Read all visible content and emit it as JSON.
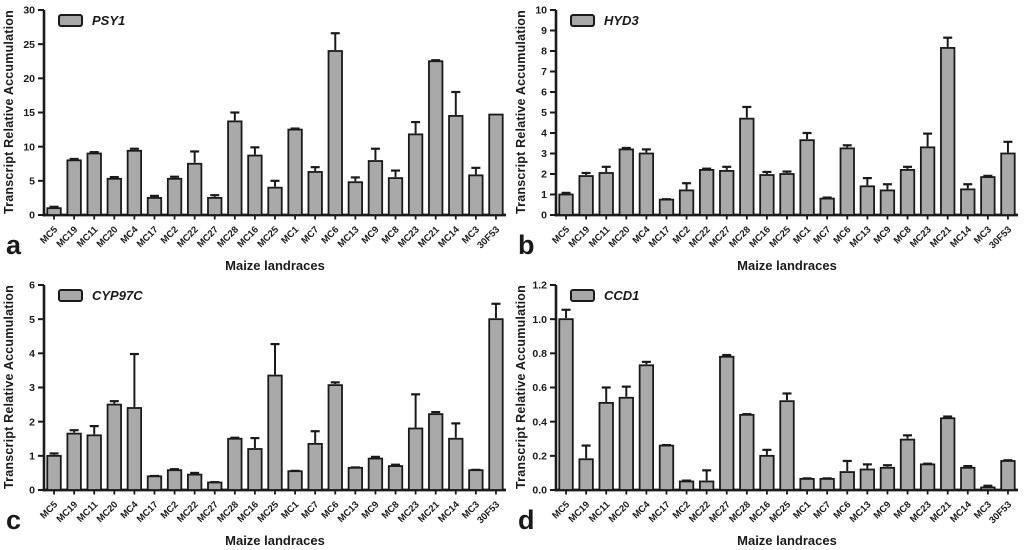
{
  "style": {
    "bar_fill": "#a9a9a9",
    "ink": "#1a1a1a",
    "background": "#ffffff"
  },
  "chart_data": [
    {
      "type": "bar",
      "panel_letter": "a",
      "legend": "PSY1",
      "legend_position": "top-left",
      "xlabel": "Maize landraces",
      "ylabel": "Transcript Relative Accumulation",
      "ylim": [
        0,
        30
      ],
      "ytick_labels": [
        "0",
        "5",
        "10",
        "15",
        "20",
        "25",
        "30"
      ],
      "grid": false,
      "categories": [
        "MC5",
        "MC19",
        "MC11",
        "MC20",
        "MC4",
        "MC17",
        "MC2",
        "MC22",
        "MC27",
        "MC28",
        "MC16",
        "MC25",
        "MC1",
        "MC7",
        "MC6",
        "MC13",
        "MC9",
        "MC8",
        "MC23",
        "MC21",
        "MC14",
        "MC3",
        "30F53"
      ],
      "values": [
        1.0,
        8.0,
        9.0,
        5.3,
        9.4,
        2.5,
        5.3,
        7.5,
        2.5,
        13.7,
        8.7,
        4.0,
        12.5,
        6.3,
        24.0,
        4.8,
        7.9,
        5.4,
        11.8,
        22.5,
        14.5,
        5.8,
        14.7
      ],
      "errors_upper": [
        0.2,
        0.2,
        0.2,
        0.25,
        0.3,
        0.3,
        0.3,
        1.8,
        0.4,
        1.3,
        1.2,
        1.0,
        0.15,
        0.7,
        2.6,
        0.7,
        1.8,
        1.1,
        1.8,
        0.15,
        3.5,
        1.1,
        0
      ]
    },
    {
      "type": "bar",
      "panel_letter": "b",
      "legend": "HYD3",
      "legend_position": "top-left",
      "xlabel": "Maize landraces",
      "ylabel": "Transcript Relative Accumulation",
      "ylim": [
        0,
        10
      ],
      "ytick_labels": [
        "0",
        "1",
        "2",
        "3",
        "4",
        "5",
        "6",
        "7",
        "8",
        "9",
        "10"
      ],
      "grid": false,
      "categories": [
        "MC5",
        "MC19",
        "MC11",
        "MC20",
        "MC4",
        "MC17",
        "MC2",
        "MC22",
        "MC27",
        "MC28",
        "MC16",
        "MC25",
        "MC1",
        "MC7",
        "MC6",
        "MC13",
        "MC9",
        "MC8",
        "MC23",
        "MC21",
        "MC14",
        "MC3",
        "30F53"
      ],
      "values": [
        1.0,
        1.9,
        2.05,
        3.2,
        3.0,
        0.75,
        1.2,
        2.2,
        2.15,
        4.7,
        1.95,
        2.0,
        3.65,
        0.8,
        3.25,
        1.4,
        1.2,
        2.2,
        3.3,
        8.15,
        1.25,
        1.85,
        3.0
      ],
      "errors_upper": [
        0.08,
        0.15,
        0.3,
        0.07,
        0.2,
        0.02,
        0.35,
        0.06,
        0.2,
        0.57,
        0.15,
        0.12,
        0.35,
        0.05,
        0.15,
        0.4,
        0.3,
        0.15,
        0.67,
        0.5,
        0.25,
        0.06,
        0.57
      ]
    },
    {
      "type": "bar",
      "panel_letter": "c",
      "legend": "CYP97C",
      "legend_position": "top-left",
      "xlabel": "Maize landraces",
      "ylabel": "Transcript Relative Accumulation",
      "ylim": [
        0,
        6
      ],
      "ytick_labels": [
        "0",
        "1",
        "2",
        "3",
        "4",
        "5",
        "6"
      ],
      "grid": false,
      "categories": [
        "MC5",
        "MC19",
        "MC11",
        "MC20",
        "MC4",
        "MC17",
        "MC2",
        "MC22",
        "MC27",
        "MC28",
        "MC16",
        "MC25",
        "MC1",
        "MC7",
        "MC6",
        "MC13",
        "MC9",
        "MC8",
        "MC23",
        "MC21",
        "MC14",
        "MC3",
        "30F53"
      ],
      "values": [
        1.0,
        1.65,
        1.6,
        2.5,
        2.4,
        0.4,
        0.58,
        0.45,
        0.22,
        1.5,
        1.2,
        3.35,
        0.55,
        1.35,
        3.07,
        0.65,
        0.92,
        0.7,
        1.8,
        2.22,
        1.5,
        0.58,
        5.0
      ],
      "errors_upper": [
        0.07,
        0.1,
        0.27,
        0.1,
        1.58,
        0.01,
        0.03,
        0.05,
        0.01,
        0.03,
        0.32,
        0.92,
        0.01,
        0.37,
        0.08,
        0.01,
        0.05,
        0.04,
        1.0,
        0.06,
        0.45,
        0.01,
        0.45
      ]
    },
    {
      "type": "bar",
      "panel_letter": "d",
      "legend": "CCD1",
      "legend_position": "top-left",
      "xlabel": "Maize landraces",
      "ylabel": "Transcript Relative Accumulation",
      "ylim": [
        0,
        1.2
      ],
      "ytick_labels": [
        "0.0",
        "0.2",
        "0.4",
        "0.6",
        "0.8",
        "1.0",
        "1.2"
      ],
      "grid": false,
      "categories": [
        "MC5",
        "MC19",
        "MC11",
        "MC20",
        "MC4",
        "MC17",
        "MC2",
        "MC22",
        "MC27",
        "MC28",
        "MC16",
        "MC25",
        "MC1",
        "MC7",
        "MC6",
        "MC13",
        "MC9",
        "MC8",
        "MC23",
        "MC21",
        "MC14",
        "MC3",
        "30F53"
      ],
      "values": [
        1.0,
        0.18,
        0.51,
        0.54,
        0.73,
        0.26,
        0.05,
        0.05,
        0.78,
        0.44,
        0.2,
        0.52,
        0.065,
        0.065,
        0.105,
        0.12,
        0.13,
        0.295,
        0.15,
        0.42,
        0.13,
        0.015,
        0.17
      ],
      "errors_upper": [
        0.055,
        0.08,
        0.09,
        0.065,
        0.02,
        0.003,
        0.005,
        0.065,
        0.01,
        0.004,
        0.035,
        0.045,
        0.003,
        0.003,
        0.065,
        0.03,
        0.015,
        0.025,
        0.004,
        0.01,
        0.01,
        0.01,
        0.004
      ]
    }
  ]
}
